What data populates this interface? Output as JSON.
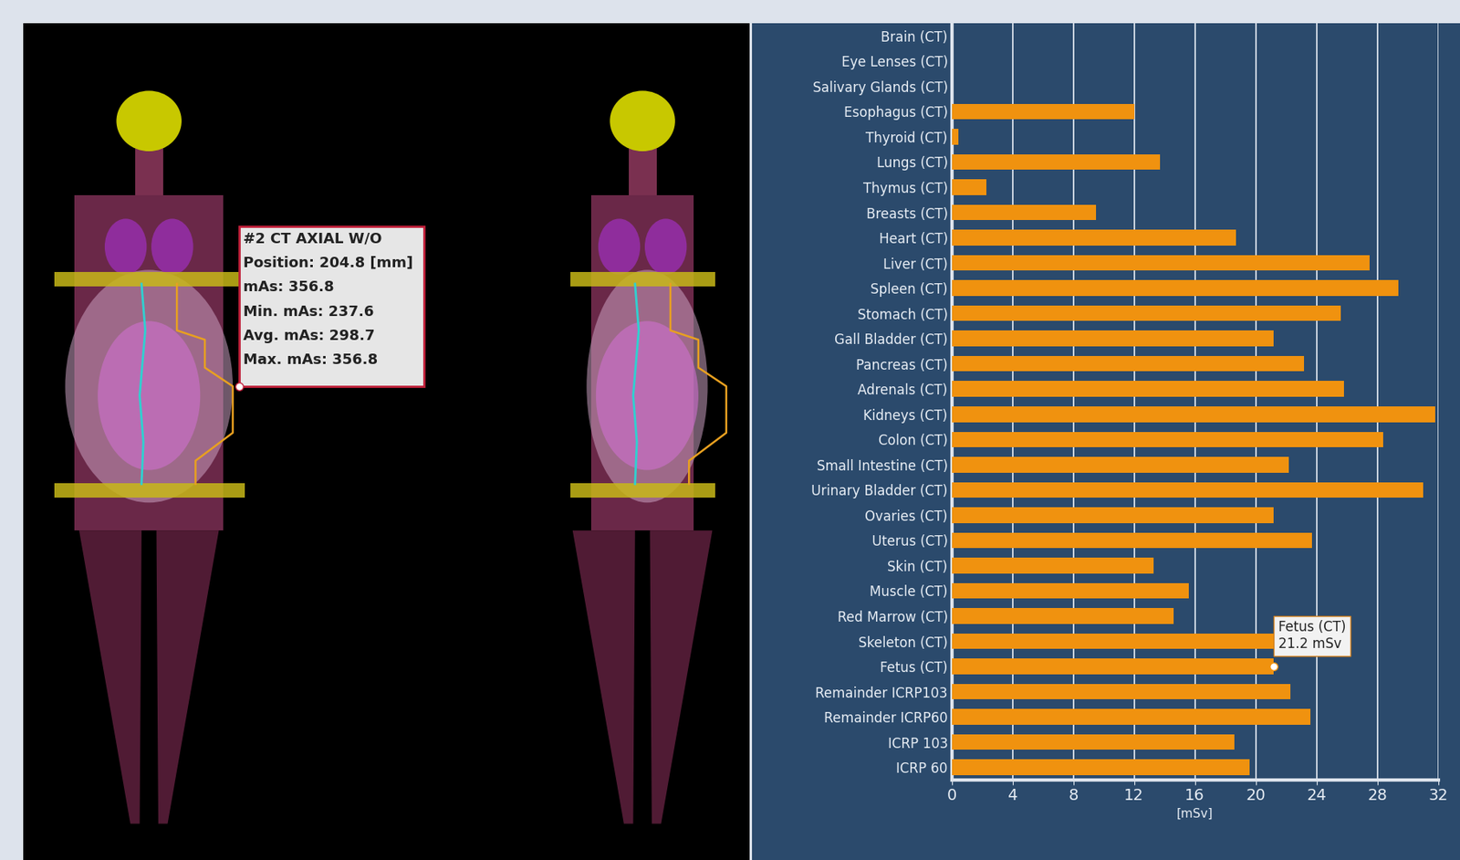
{
  "chart_data": {
    "type": "bar",
    "orientation": "horizontal",
    "categories": [
      "Brain (CT)",
      "Eye Lenses (CT)",
      "Salivary Glands (CT)",
      "Esophagus (CT)",
      "Thyroid (CT)",
      "Lungs (CT)",
      "Thymus (CT)",
      "Breasts (CT)",
      "Heart (CT)",
      "Liver (CT)",
      "Spleen (CT)",
      "Stomach (CT)",
      "Gall Bladder (CT)",
      "Pancreas (CT)",
      "Adrenals (CT)",
      "Kidneys (CT)",
      "Colon (CT)",
      "Small Intestine (CT)",
      "Urinary Bladder (CT)",
      "Ovaries (CT)",
      "Uterus (CT)",
      "Skin (CT)",
      "Muscle (CT)",
      "Red Marrow (CT)",
      "Skeleton (CT)",
      "Fetus (CT)",
      "Remainder ICRP103",
      "Remainder ICRP60",
      "ICRP 103",
      "ICRP 60"
    ],
    "values": [
      0,
      0,
      0,
      12.0,
      0.45,
      13.7,
      2.3,
      9.5,
      18.7,
      27.5,
      29.4,
      25.6,
      21.2,
      23.2,
      25.8,
      31.8,
      28.4,
      22.2,
      31.0,
      21.2,
      23.7,
      13.3,
      15.6,
      14.6,
      22.1,
      21.2,
      22.3,
      23.6,
      18.6,
      19.6
    ],
    "color": "#f0920f",
    "x_label": "[mSv]",
    "xlim": [
      0,
      32
    ],
    "xticks": [
      0,
      4,
      8,
      12,
      16,
      20,
      24,
      28,
      32
    ],
    "grid": true,
    "annotation": {
      "category": "Fetus (CT)",
      "lines": [
        "Fetus (CT)",
        "21.2 mSv"
      ]
    }
  },
  "image_panel": {
    "info_box": [
      "#2 CT AXIAL W/O",
      "Position: 204.8 [mm]",
      "mAs: 356.8",
      "Min. mAs: 237.6",
      "Avg. mAs: 298.7",
      "Max. mAs: 356.8"
    ]
  }
}
